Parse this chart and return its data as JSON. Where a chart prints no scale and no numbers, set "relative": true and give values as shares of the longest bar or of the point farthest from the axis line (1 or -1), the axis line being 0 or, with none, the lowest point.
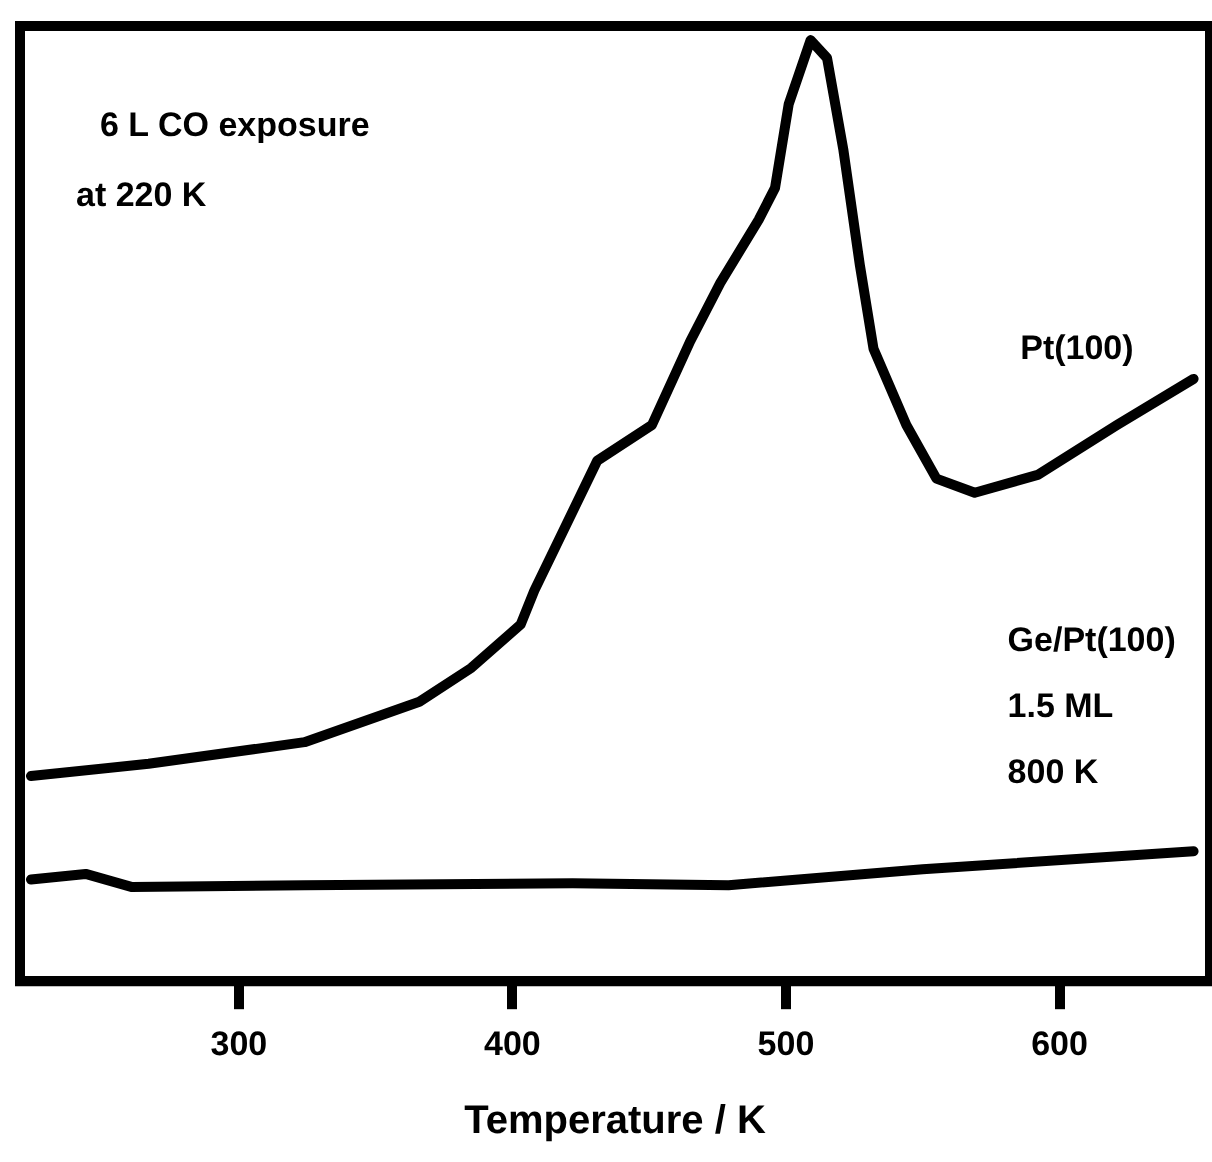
{
  "chart_data": {
    "type": "line",
    "relative": true,
    "xlabel": "Temperature / K",
    "xlim": [
      220,
      655
    ],
    "xticks": [
      300,
      400,
      500,
      600
    ],
    "tick_labels": "x",
    "grid": false,
    "legend": false,
    "marker": "none",
    "line_style": "solid",
    "annotations": [
      "6 L CO exposure",
      "at 220 K",
      "Ge/Pt(100)",
      "1.5 ML",
      "800 K"
    ],
    "series": [
      {
        "name": "Pt(100)",
        "color": "#000000",
        "x": [
          224,
          267,
          324,
          366,
          385,
          403,
          408,
          431,
          451,
          465,
          476,
          490,
          496,
          501,
          509,
          515,
          521,
          527,
          532,
          544,
          555,
          569,
          592,
          621,
          649
        ],
        "values": [
          0.218,
          0.231,
          0.254,
          0.297,
          0.333,
          0.379,
          0.415,
          0.553,
          0.591,
          0.68,
          0.742,
          0.809,
          0.843,
          0.932,
          1,
          0.981,
          0.883,
          0.761,
          0.672,
          0.591,
          0.534,
          0.519,
          0.538,
          0.591,
          0.64
        ]
      },
      {
        "color": "#000000",
        "x": [
          224,
          244,
          261,
          324,
          422,
          479,
          550,
          649
        ],
        "values": [
          0.108,
          0.114,
          0.1,
          0.102,
          0.104,
          0.102,
          0.119,
          0.138
        ]
      }
    ]
  }
}
